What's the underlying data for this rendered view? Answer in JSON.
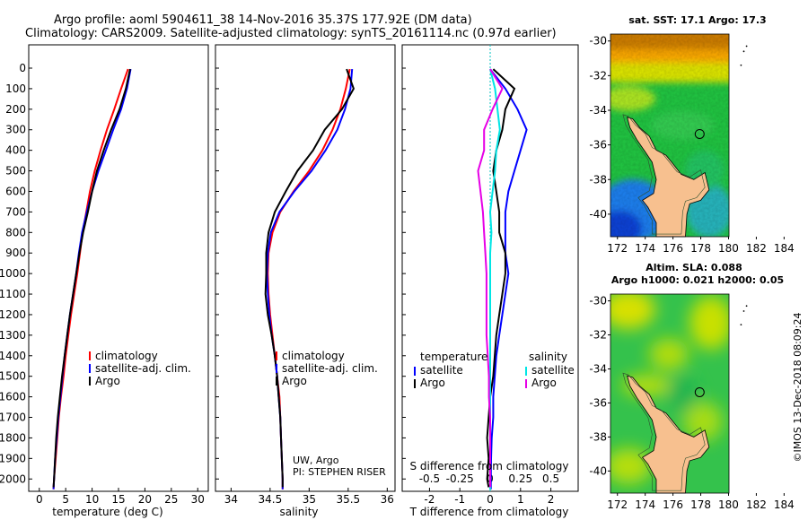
{
  "title": {
    "line1": "Argo profile: aoml 5904611_38 14-Nov-2016 35.37S 177.92E (DM data)",
    "line2": "Climatology: CARS2009. Satellite-adjusted climatology: synTS_20161114.nc (0.97d earlier)"
  },
  "colors": {
    "climatology": "#ff0000",
    "satellite": "#0000ff",
    "argo": "#000000",
    "satellite_salinity": "#00e5e5",
    "argo_salinity_diff": "#e600e6",
    "land": "#f7c08f"
  },
  "chart_data": [
    {
      "id": "temperature",
      "type": "line",
      "xlabel": "temperature (deg C)",
      "xlim": [
        -2,
        32
      ],
      "ylim": [
        2060,
        0
      ],
      "xticks": [
        0,
        5,
        10,
        15,
        20,
        25,
        30
      ],
      "yticks": [
        0,
        100,
        200,
        300,
        400,
        500,
        600,
        700,
        800,
        900,
        1000,
        1100,
        1200,
        1300,
        1400,
        1500,
        1600,
        1700,
        1800,
        1900,
        2000
      ],
      "legend": [
        "climatology",
        "satellite-adj. clim.",
        "Argo"
      ],
      "series": [
        {
          "name": "climatology",
          "color": "#ff0000",
          "points": [
            [
              16.8,
              5
            ],
            [
              15.5,
              100
            ],
            [
              14.2,
              200
            ],
            [
              12.8,
              300
            ],
            [
              11.6,
              400
            ],
            [
              10.5,
              500
            ],
            [
              9.6,
              600
            ],
            [
              8.9,
              700
            ],
            [
              8.2,
              800
            ],
            [
              7.7,
              900
            ],
            [
              7.2,
              1000
            ],
            [
              6.6,
              1100
            ],
            [
              6.0,
              1200
            ],
            [
              5.5,
              1300
            ],
            [
              5.0,
              1400
            ],
            [
              4.6,
              1500
            ],
            [
              4.1,
              1600
            ],
            [
              3.7,
              1700
            ],
            [
              3.4,
              1800
            ],
            [
              3.1,
              1900
            ],
            [
              2.8,
              2000
            ],
            [
              2.7,
              2050
            ]
          ]
        },
        {
          "name": "satellite-adj. clim.",
          "color": "#0000ff",
          "points": [
            [
              17.3,
              5
            ],
            [
              16.6,
              100
            ],
            [
              15.5,
              200
            ],
            [
              14.0,
              300
            ],
            [
              12.6,
              400
            ],
            [
              11.2,
              500
            ],
            [
              10.0,
              600
            ],
            [
              9.0,
              700
            ],
            [
              8.1,
              800
            ],
            [
              7.5,
              900
            ],
            [
              7.0,
              1000
            ],
            [
              6.4,
              1100
            ],
            [
              5.8,
              1200
            ],
            [
              5.3,
              1300
            ],
            [
              4.8,
              1400
            ],
            [
              4.4,
              1500
            ],
            [
              4.0,
              1600
            ],
            [
              3.6,
              1700
            ],
            [
              3.3,
              1800
            ],
            [
              3.0,
              1900
            ],
            [
              2.8,
              2000
            ],
            [
              2.7,
              2050
            ]
          ]
        },
        {
          "name": "Argo",
          "color": "#000000",
          "points": [
            [
              17.2,
              5
            ],
            [
              16.4,
              100
            ],
            [
              15.2,
              200
            ],
            [
              13.6,
              300
            ],
            [
              12.2,
              400
            ],
            [
              10.9,
              500
            ],
            [
              10.0,
              600
            ],
            [
              9.2,
              700
            ],
            [
              8.3,
              800
            ],
            [
              7.6,
              900
            ],
            [
              7.0,
              1000
            ],
            [
              6.4,
              1100
            ],
            [
              5.8,
              1200
            ],
            [
              5.3,
              1300
            ],
            [
              4.8,
              1400
            ],
            [
              4.3,
              1500
            ],
            [
              3.9,
              1600
            ],
            [
              3.5,
              1700
            ],
            [
              3.2,
              1800
            ],
            [
              3.0,
              1900
            ],
            [
              2.8,
              2000
            ],
            [
              2.7,
              2040
            ]
          ]
        }
      ]
    },
    {
      "id": "salinity",
      "type": "line",
      "xlabel": "salinity",
      "xlim": [
        33.8,
        36.1
      ],
      "ylim": [
        2060,
        0
      ],
      "xticks": [
        34,
        34.5,
        35,
        35.5,
        36
      ],
      "legend": [
        "climatology",
        "satellite-adj. clim.",
        "Argo"
      ],
      "series": [
        {
          "name": "climatology",
          "color": "#ff0000",
          "points": [
            [
              35.52,
              5
            ],
            [
              35.47,
              100
            ],
            [
              35.4,
              200
            ],
            [
              35.3,
              300
            ],
            [
              35.17,
              400
            ],
            [
              35.0,
              500
            ],
            [
              34.8,
              600
            ],
            [
              34.63,
              700
            ],
            [
              34.53,
              800
            ],
            [
              34.48,
              900
            ],
            [
              34.47,
              1000
            ],
            [
              34.48,
              1100
            ],
            [
              34.5,
              1200
            ],
            [
              34.53,
              1300
            ],
            [
              34.56,
              1400
            ],
            [
              34.59,
              1500
            ],
            [
              34.62,
              1600
            ],
            [
              34.63,
              1700
            ],
            [
              34.64,
              1800
            ],
            [
              34.65,
              1900
            ],
            [
              34.66,
              2000
            ],
            [
              34.66,
              2050
            ]
          ]
        },
        {
          "name": "satellite-adj. clim.",
          "color": "#0000ff",
          "points": [
            [
              35.55,
              5
            ],
            [
              35.53,
              100
            ],
            [
              35.46,
              200
            ],
            [
              35.36,
              300
            ],
            [
              35.21,
              400
            ],
            [
              35.03,
              500
            ],
            [
              34.81,
              600
            ],
            [
              34.62,
              700
            ],
            [
              34.51,
              800
            ],
            [
              34.47,
              900
            ],
            [
              34.46,
              1000
            ],
            [
              34.47,
              1100
            ],
            [
              34.49,
              1200
            ],
            [
              34.52,
              1300
            ],
            [
              34.56,
              1400
            ],
            [
              34.59,
              1500
            ],
            [
              34.61,
              1600
            ],
            [
              34.63,
              1700
            ],
            [
              34.64,
              1800
            ],
            [
              34.65,
              1900
            ],
            [
              34.66,
              2000
            ],
            [
              34.66,
              2050
            ]
          ]
        },
        {
          "name": "Argo",
          "color": "#000000",
          "points": [
            [
              35.48,
              5
            ],
            [
              35.57,
              100
            ],
            [
              35.42,
              200
            ],
            [
              35.2,
              300
            ],
            [
              35.05,
              400
            ],
            [
              34.85,
              500
            ],
            [
              34.7,
              600
            ],
            [
              34.56,
              700
            ],
            [
              34.48,
              800
            ],
            [
              34.45,
              900
            ],
            [
              34.45,
              1000
            ],
            [
              34.44,
              1100
            ],
            [
              34.47,
              1200
            ],
            [
              34.52,
              1300
            ],
            [
              34.56,
              1400
            ],
            [
              34.59,
              1500
            ],
            [
              34.61,
              1600
            ],
            [
              34.63,
              1700
            ],
            [
              34.64,
              1800
            ],
            [
              34.65,
              1900
            ],
            [
              34.66,
              2000
            ],
            [
              34.66,
              2040
            ]
          ]
        }
      ],
      "annotation": [
        "UW, Argo",
        "PI: STEPHEN RISER"
      ]
    },
    {
      "id": "difference",
      "type": "line",
      "xlabel": "T difference from climatology",
      "xlabel_top": "S difference from climatology",
      "xlim": [
        -2.9,
        2.9
      ],
      "ylim": [
        2060,
        0
      ],
      "xticks": [
        -2,
        -1,
        0,
        1,
        2
      ],
      "xticks_top": [
        -0.5,
        -0.25,
        0,
        0.25,
        0.5
      ],
      "xtick_labels_top": [
        "-0.5",
        "-0.25",
        "0",
        "0.25",
        "0.5"
      ],
      "legend_temperature": {
        "title": "temperature",
        "items": [
          "satellite",
          "Argo"
        ]
      },
      "legend_salinity": {
        "title": "salinity",
        "items": [
          "satellite",
          "Argo"
        ]
      },
      "series": [
        {
          "name": "temperature satellite",
          "color": "#0000ff",
          "points": [
            [
              0.0,
              5
            ],
            [
              0.5,
              100
            ],
            [
              0.9,
              200
            ],
            [
              1.2,
              300
            ],
            [
              1.0,
              400
            ],
            [
              0.8,
              500
            ],
            [
              0.6,
              600
            ],
            [
              0.5,
              700
            ],
            [
              0.5,
              800
            ],
            [
              0.5,
              900
            ],
            [
              0.6,
              1000
            ],
            [
              0.5,
              1100
            ],
            [
              0.4,
              1200
            ],
            [
              0.3,
              1300
            ],
            [
              0.2,
              1400
            ],
            [
              0.15,
              1500
            ],
            [
              0.1,
              1600
            ],
            [
              0.1,
              1700
            ],
            [
              0.05,
              1800
            ],
            [
              0.03,
              1900
            ],
            [
              0.02,
              2000
            ],
            [
              0.02,
              2050
            ]
          ]
        },
        {
          "name": "temperature Argo",
          "color": "#000000",
          "points": [
            [
              0.1,
              5
            ],
            [
              0.8,
              100
            ],
            [
              0.5,
              200
            ],
            [
              0.4,
              300
            ],
            [
              0.2,
              400
            ],
            [
              0.1,
              500
            ],
            [
              0.2,
              600
            ],
            [
              0.3,
              700
            ],
            [
              0.3,
              800
            ],
            [
              0.5,
              900
            ],
            [
              0.5,
              1000
            ],
            [
              0.4,
              1100
            ],
            [
              0.3,
              1200
            ],
            [
              0.2,
              1300
            ],
            [
              0.15,
              1400
            ],
            [
              0.1,
              1500
            ],
            [
              0.0,
              1600
            ],
            [
              -0.05,
              1700
            ],
            [
              -0.1,
              1800
            ],
            [
              -0.05,
              1900
            ],
            [
              -0.1,
              2000
            ],
            [
              -0.05,
              2040
            ]
          ]
        },
        {
          "name": "salinity satellite",
          "color": "#00e5e5",
          "points": [
            [
              0.0,
              5
            ],
            [
              0.04,
              100
            ],
            [
              0.06,
              200
            ],
            [
              0.08,
              300
            ],
            [
              0.05,
              400
            ],
            [
              0.04,
              500
            ],
            [
              0.02,
              600
            ],
            [
              0.0,
              700
            ],
            [
              0.01,
              800
            ],
            [
              0.0,
              900
            ],
            [
              0.0,
              1000
            ],
            [
              0.0,
              1100
            ],
            [
              0.0,
              1200
            ],
            [
              0.0,
              1300
            ],
            [
              0.0,
              1400
            ],
            [
              0.0,
              1500
            ],
            [
              0.0,
              1600
            ],
            [
              0.0,
              1700
            ],
            [
              0.0,
              1800
            ],
            [
              0.0,
              1900
            ],
            [
              0.0,
              2000
            ],
            [
              0.0,
              2050
            ]
          ]
        },
        {
          "name": "salinity Argo",
          "color": "#e600e6",
          "points": [
            [
              0.0,
              5
            ],
            [
              0.1,
              100
            ],
            [
              0.02,
              200
            ],
            [
              -0.05,
              300
            ],
            [
              -0.05,
              400
            ],
            [
              -0.1,
              500
            ],
            [
              -0.08,
              600
            ],
            [
              -0.06,
              700
            ],
            [
              -0.05,
              800
            ],
            [
              -0.04,
              900
            ],
            [
              -0.03,
              1000
            ],
            [
              -0.03,
              1100
            ],
            [
              -0.03,
              1200
            ],
            [
              -0.03,
              1300
            ],
            [
              -0.02,
              1400
            ],
            [
              -0.01,
              1500
            ],
            [
              -0.01,
              1600
            ],
            [
              0.0,
              1700
            ],
            [
              0.0,
              1800
            ],
            [
              0.0,
              1900
            ],
            [
              0.0,
              2000
            ],
            [
              0.0,
              2040
            ]
          ]
        }
      ]
    },
    {
      "id": "map-sst",
      "type": "heatmap",
      "title": "sat. SST: 17.1  Argo: 17.3",
      "xlim": [
        171.5,
        184.3
      ],
      "ylim": [
        -41.3,
        -29.6
      ],
      "xticks": [
        172,
        174,
        176,
        178,
        180,
        182,
        184
      ],
      "yticks": [
        -30,
        -32,
        -34,
        -36,
        -38,
        -40
      ],
      "marker": {
        "lon": 177.92,
        "lat": -35.37
      }
    },
    {
      "id": "map-sla",
      "type": "heatmap",
      "title_line1": "Altim. SLA: 0.088",
      "title_line2": "Argo h1000: 0.021 h2000: 0.05",
      "xlim": [
        171.5,
        184.3
      ],
      "ylim": [
        -41.3,
        -29.6
      ],
      "xticks": [
        172,
        174,
        176,
        178,
        180,
        182,
        184
      ],
      "yticks": [
        -30,
        -32,
        -34,
        -36,
        -38,
        -40
      ],
      "marker": {
        "lon": 177.92,
        "lat": -35.37
      }
    }
  ],
  "credit": "©IMOS 13-Dec-2018 08:09:24"
}
